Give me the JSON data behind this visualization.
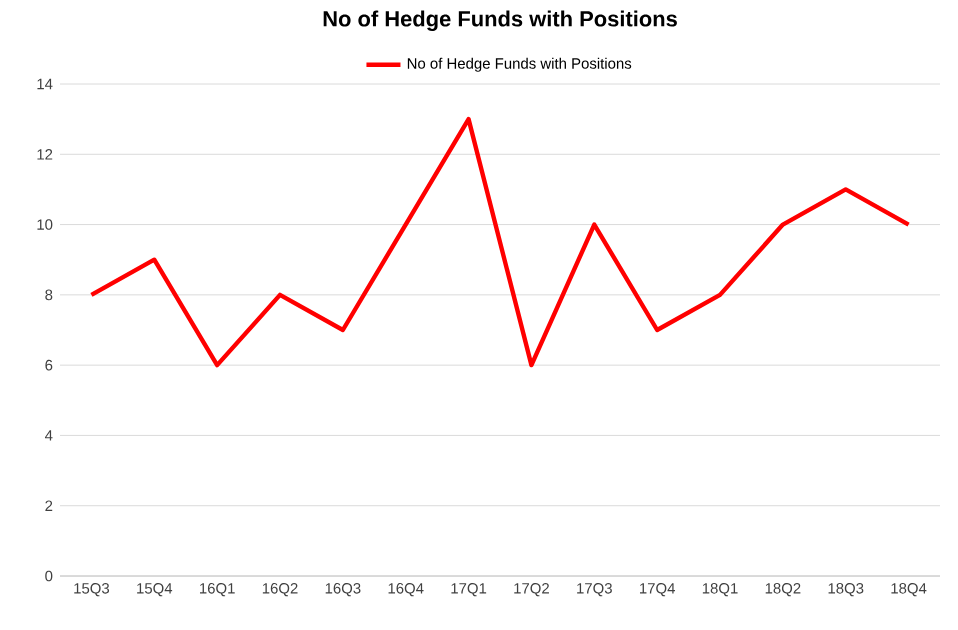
{
  "chart_data": {
    "type": "line",
    "title": "No of Hedge Funds with Positions",
    "categories": [
      "15Q3",
      "15Q4",
      "16Q1",
      "16Q2",
      "16Q3",
      "16Q4",
      "17Q1",
      "17Q2",
      "17Q3",
      "17Q4",
      "18Q1",
      "18Q2",
      "18Q3",
      "18Q4"
    ],
    "series": [
      {
        "name": "No of Hedge Funds with Positions",
        "color": "#ff0000",
        "values": [
          8,
          9,
          6,
          8,
          7,
          10,
          13,
          6,
          10,
          7,
          8,
          10,
          11,
          10
        ]
      }
    ],
    "ylim": [
      0,
      14
    ],
    "yticks": [
      0,
      2,
      4,
      6,
      8,
      10,
      12,
      14
    ],
    "grid": "y",
    "legend": "top",
    "marker": "none",
    "line_style": "solid"
  }
}
